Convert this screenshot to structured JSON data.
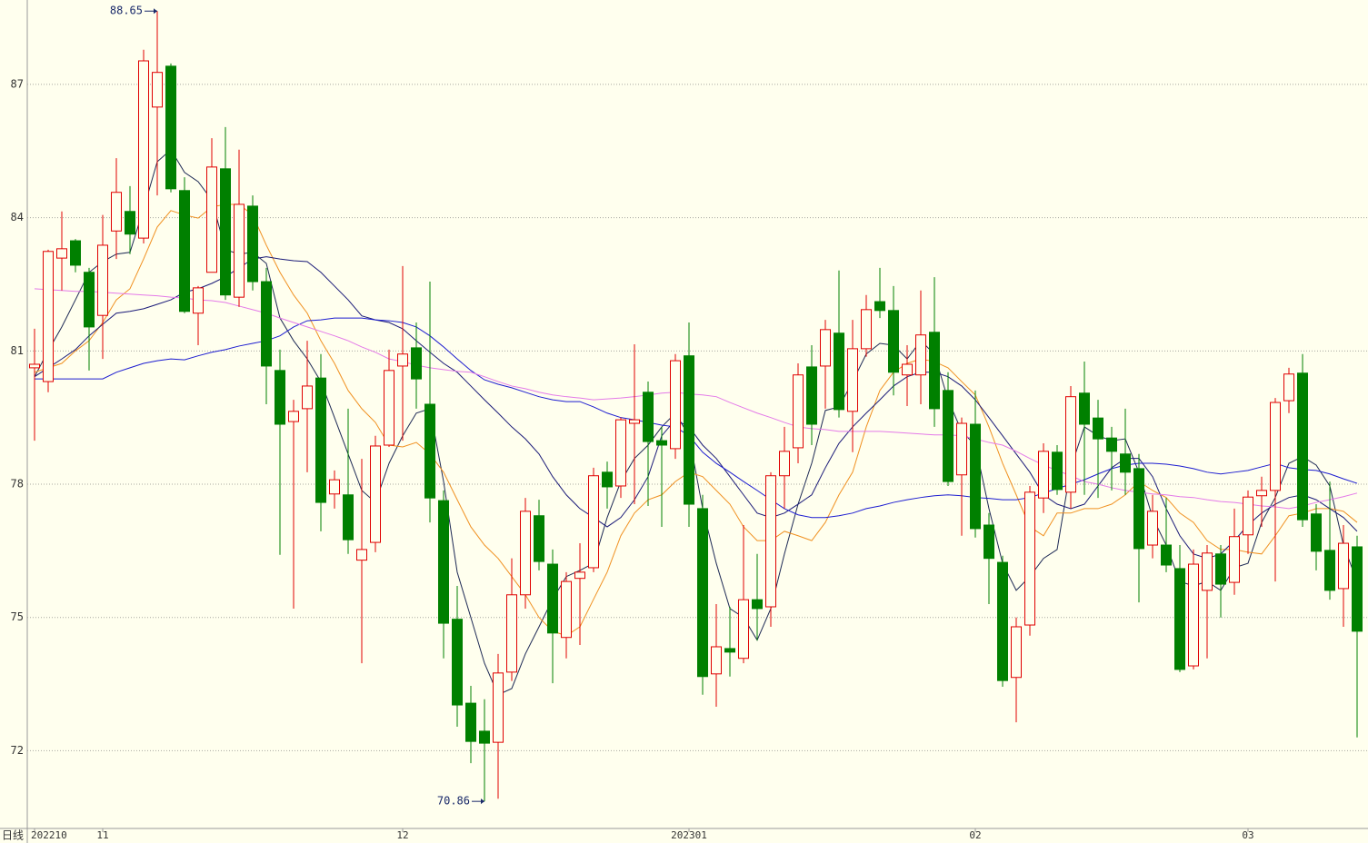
{
  "chart_data": {
    "type": "candlestick",
    "period_label": "日线",
    "categories": [
      "202210",
      null,
      null,
      null,
      null,
      "11",
      null,
      null,
      null,
      null,
      null,
      null,
      null,
      null,
      null,
      null,
      null,
      null,
      null,
      null,
      null,
      null,
      null,
      null,
      null,
      null,
      null,
      "12",
      null,
      null,
      null,
      null,
      null,
      null,
      null,
      null,
      null,
      null,
      null,
      null,
      null,
      null,
      null,
      null,
      null,
      null,
      null,
      null,
      "202301",
      null,
      null,
      null,
      null,
      null,
      null,
      null,
      null,
      null,
      null,
      null,
      null,
      null,
      null,
      null,
      null,
      null,
      null,
      null,
      null,
      "02",
      null,
      null,
      null,
      null,
      null,
      null,
      null,
      null,
      null,
      null,
      null,
      null,
      null,
      null,
      null,
      null,
      null,
      null,
      null,
      "03",
      null,
      null,
      null,
      null,
      null,
      null,
      null,
      null
    ],
    "open": [
      80.62,
      80.31,
      83.09,
      83.48,
      82.77,
      81.8,
      83.7,
      84.14,
      83.54,
      86.49,
      87.41,
      84.61,
      81.85,
      82.77,
      85.1,
      82.21,
      84.26,
      82.56,
      80.56,
      79.41,
      79.7,
      80.39,
      77.78,
      77.76,
      76.29,
      76.69,
      78.88,
      80.66,
      81.07,
      79.8,
      77.63,
      74.96,
      73.07,
      72.44,
      72.19,
      73.77,
      75.51,
      77.29,
      76.2,
      74.55,
      75.88,
      76.12,
      78.27,
      77.96,
      79.37,
      80.07,
      78.98,
      78.8,
      80.89,
      77.45,
      73.73,
      74.3,
      74.08,
      75.4,
      75.24,
      78.19,
      78.82,
      80.64,
      80.66,
      81.4,
      79.64,
      81.05,
      82.11,
      81.91,
      80.46,
      80.46,
      81.42,
      80.11,
      78.21,
      79.35,
      77.08,
      76.24,
      73.65,
      74.83,
      77.69,
      78.72,
      77.82,
      80.05,
      79.49,
      79.04,
      78.68,
      78.35,
      76.63,
      76.63,
      76.1,
      73.91,
      75.61,
      76.43,
      75.79,
      76.86,
      77.74,
      77.86,
      79.88,
      80.5,
      77.33,
      76.51,
      75.65,
      76.59
    ],
    "high": [
      81.5,
      83.28,
      84.14,
      83.52,
      82.87,
      84.06,
      85.34,
      84.71,
      87.78,
      88.65,
      87.47,
      84.91,
      82.46,
      85.79,
      86.04,
      85.53,
      84.5,
      82.87,
      81.03,
      79.9,
      81.23,
      80.93,
      78.31,
      79.7,
      78.57,
      79.09,
      81.03,
      82.91,
      81.64,
      82.56,
      77.86,
      75.71,
      73.46,
      73.16,
      74.18,
      76.33,
      77.69,
      77.65,
      76.53,
      76.02,
      76.67,
      78.37,
      78.51,
      79.5,
      81.15,
      80.31,
      79.29,
      80.93,
      81.64,
      77.76,
      75.3,
      75.24,
      77.08,
      76.43,
      78.27,
      79.29,
      80.72,
      81.13,
      81.7,
      82.81,
      81.7,
      82.26,
      82.87,
      82.46,
      81.13,
      82.36,
      82.66,
      80.52,
      79.5,
      80.11,
      77.35,
      76.39,
      75.0,
      77.96,
      78.92,
      78.88,
      80.21,
      80.76,
      79.9,
      79.29,
      79.7,
      78.68,
      77.76,
      77.69,
      76.63,
      76.53,
      76.63,
      76.63,
      77.45,
      77.86,
      78.17,
      79.94,
      80.62,
      80.93,
      77.55,
      78.06,
      77.08,
      76.84
    ],
    "low": [
      78.98,
      80.07,
      82.36,
      82.77,
      80.56,
      80.82,
      83.07,
      83.18,
      83.42,
      84.5,
      84.57,
      81.85,
      81.13,
      82.77,
      82.15,
      81.99,
      82.36,
      79.8,
      76.41,
      75.2,
      78.27,
      76.94,
      77.45,
      76.43,
      73.97,
      76.47,
      78.84,
      78.98,
      79.7,
      77.14,
      74.08,
      72.54,
      71.72,
      70.86,
      70.92,
      73.57,
      75.2,
      76.06,
      73.52,
      74.08,
      74.38,
      76.02,
      77.45,
      77.69,
      77.55,
      77.51,
      77.04,
      78.57,
      77.04,
      73.26,
      72.99,
      73.67,
      73.97,
      74.48,
      74.79,
      77.45,
      78.47,
      78.88,
      79.7,
      79.5,
      78.72,
      80.87,
      81.74,
      80.0,
      79.76,
      79.8,
      79.29,
      77.96,
      76.84,
      76.8,
      75.3,
      73.44,
      72.64,
      74.59,
      77.35,
      77.76,
      77.45,
      77.76,
      77.69,
      77.86,
      77.76,
      75.34,
      76.33,
      76.02,
      73.77,
      73.83,
      74.08,
      75.0,
      75.51,
      76.43,
      77.04,
      75.81,
      79.6,
      77.04,
      76.06,
      75.4,
      74.79,
      72.3
    ],
    "close": [
      80.7,
      83.24,
      83.3,
      82.93,
      81.54,
      83.38,
      84.57,
      83.63,
      87.53,
      87.27,
      84.65,
      81.89,
      82.42,
      85.14,
      82.26,
      84.3,
      82.56,
      80.66,
      79.35,
      79.64,
      80.21,
      77.59,
      78.1,
      76.75,
      76.53,
      78.86,
      80.56,
      80.93,
      80.37,
      77.69,
      74.87,
      73.03,
      72.21,
      72.17,
      73.75,
      75.51,
      77.39,
      76.26,
      74.65,
      75.81,
      76.02,
      78.19,
      77.94,
      79.45,
      79.45,
      78.96,
      78.88,
      80.78,
      77.55,
      73.67,
      74.34,
      74.22,
      75.4,
      75.2,
      78.19,
      78.74,
      80.46,
      79.35,
      81.48,
      79.68,
      81.05,
      81.93,
      81.91,
      80.52,
      80.7,
      81.36,
      79.7,
      78.06,
      79.37,
      77.0,
      76.33,
      73.58,
      74.79,
      77.82,
      78.74,
      77.88,
      79.97,
      79.35,
      79.02,
      78.74,
      78.27,
      76.55,
      77.39,
      76.18,
      73.83,
      76.2,
      76.45,
      75.75,
      76.82,
      77.71,
      77.86,
      79.84,
      80.48,
      77.2,
      76.49,
      75.61,
      76.67,
      74.69
    ],
    "up_color": "#e00000",
    "down_color": "#008000",
    "lines": [
      {
        "color": "#1e2a55",
        "values": [
          80.42,
          81.0,
          81.54,
          82.15,
          82.77,
          83.01,
          83.18,
          83.22,
          84.2,
          85.26,
          85.53,
          85.02,
          84.81,
          84.4,
          83.28,
          83.18,
          83.22,
          82.97,
          81.74,
          81.23,
          80.82,
          80.31,
          79.5,
          78.68,
          77.86,
          77.59,
          78.47,
          79.09,
          79.6,
          79.7,
          78.06,
          76.02,
          75.0,
          73.97,
          73.26,
          73.4,
          74.18,
          74.79,
          75.41,
          75.92,
          76.06,
          76.22,
          77.25,
          78.06,
          78.58,
          78.88,
          79.29,
          79.6,
          79.09,
          77.45,
          76.22,
          75.2,
          75.0,
          74.49,
          75.2,
          76.43,
          77.55,
          78.47,
          79.66,
          79.74,
          80.31,
          80.93,
          81.17,
          81.13,
          80.82,
          81.23,
          80.93,
          79.9,
          79.19,
          78.88,
          77.45,
          76.22,
          75.61,
          75.92,
          76.33,
          76.53,
          78.37,
          79.29,
          79.09,
          78.98,
          79.02,
          78.27,
          77.25,
          76.63,
          75.81,
          75.71,
          75.81,
          75.61,
          76.12,
          76.22,
          77.14,
          77.7,
          78.47,
          78.62,
          78.43,
          77.96,
          76.63,
          75.81
        ]
      },
      {
        "color": "#f09020",
        "values": [
          80.52,
          80.62,
          80.72,
          81.0,
          81.23,
          81.64,
          82.15,
          82.4,
          83.07,
          83.79,
          84.16,
          84.06,
          83.99,
          84.24,
          84.3,
          84.3,
          84.06,
          83.38,
          82.77,
          82.26,
          81.85,
          81.23,
          80.72,
          80.11,
          79.7,
          79.39,
          78.88,
          78.84,
          78.94,
          78.68,
          78.27,
          77.65,
          77.04,
          76.63,
          76.33,
          75.92,
          75.51,
          75.0,
          74.69,
          74.59,
          74.79,
          75.41,
          76.02,
          76.84,
          77.35,
          77.65,
          77.76,
          78.06,
          78.27,
          78.17,
          77.86,
          77.55,
          77.04,
          76.73,
          76.73,
          76.94,
          76.84,
          76.73,
          77.14,
          77.76,
          78.27,
          79.29,
          80.11,
          80.52,
          80.72,
          80.82,
          80.76,
          80.62,
          80.31,
          80.01,
          79.29,
          78.47,
          77.76,
          77.04,
          76.84,
          77.35,
          77.35,
          77.45,
          77.45,
          77.55,
          77.76,
          78.06,
          77.86,
          77.7,
          77.35,
          77.14,
          76.73,
          76.53,
          76.53,
          76.47,
          76.43,
          76.84,
          77.29,
          77.35,
          77.45,
          77.45,
          77.39,
          77.14
        ]
      },
      {
        "color": "#1a1a78",
        "values": [
          80.42,
          80.62,
          80.82,
          81.03,
          81.34,
          81.6,
          81.85,
          81.89,
          81.95,
          82.05,
          82.15,
          82.32,
          82.4,
          82.52,
          82.67,
          82.87,
          83.07,
          83.12,
          83.07,
          83.03,
          83.01,
          82.77,
          82.46,
          82.15,
          81.79,
          81.7,
          81.64,
          81.5,
          81.23,
          80.97,
          80.72,
          80.52,
          80.21,
          79.9,
          79.6,
          79.29,
          79.02,
          78.68,
          78.17,
          77.76,
          77.45,
          77.25,
          77.04,
          77.25,
          77.65,
          78.17,
          79.09,
          79.45,
          79.29,
          78.88,
          78.58,
          78.17,
          77.76,
          77.35,
          77.25,
          77.35,
          77.55,
          77.76,
          78.37,
          78.92,
          79.29,
          79.6,
          79.9,
          80.21,
          80.42,
          80.52,
          80.52,
          80.42,
          80.21,
          79.9,
          79.5,
          79.09,
          78.68,
          78.27,
          77.76,
          77.55,
          77.45,
          77.55,
          77.96,
          78.37,
          78.58,
          78.58,
          78.17,
          77.45,
          76.84,
          76.43,
          76.33,
          76.43,
          76.73,
          77.08,
          77.35,
          77.55,
          77.7,
          77.76,
          77.65,
          77.45,
          77.25,
          76.94
        ]
      },
      {
        "color": "#1c1cd0",
        "values": [
          80.37,
          80.37,
          80.37,
          80.37,
          80.37,
          80.37,
          80.52,
          80.62,
          80.72,
          80.78,
          80.82,
          80.8,
          80.89,
          80.97,
          81.03,
          81.11,
          81.17,
          81.23,
          81.34,
          81.54,
          81.68,
          81.7,
          81.74,
          81.74,
          81.74,
          81.7,
          81.68,
          81.64,
          81.54,
          81.34,
          81.09,
          80.82,
          80.56,
          80.35,
          80.25,
          80.17,
          80.07,
          79.97,
          79.9,
          79.86,
          79.86,
          79.74,
          79.6,
          79.5,
          79.45,
          79.39,
          79.33,
          79.29,
          79.09,
          78.72,
          78.47,
          78.27,
          78.06,
          77.86,
          77.65,
          77.45,
          77.31,
          77.25,
          77.25,
          77.29,
          77.35,
          77.45,
          77.51,
          77.59,
          77.65,
          77.7,
          77.74,
          77.76,
          77.74,
          77.7,
          77.68,
          77.65,
          77.65,
          77.7,
          77.8,
          77.9,
          78.0,
          78.1,
          78.23,
          78.35,
          78.43,
          78.47,
          78.47,
          78.45,
          78.41,
          78.35,
          78.27,
          78.23,
          78.27,
          78.31,
          78.39,
          78.47,
          78.37,
          78.33,
          78.31,
          78.23,
          78.12,
          78.02
        ]
      },
      {
        "color": "#e47ae8",
        "values": [
          82.4,
          82.38,
          82.36,
          82.34,
          82.34,
          82.32,
          82.3,
          82.28,
          82.26,
          82.24,
          82.21,
          82.19,
          82.15,
          82.13,
          82.09,
          82.01,
          81.93,
          81.85,
          81.74,
          81.64,
          81.54,
          81.44,
          81.34,
          81.23,
          81.09,
          80.97,
          80.82,
          80.76,
          80.68,
          80.62,
          80.58,
          80.54,
          80.52,
          80.42,
          80.31,
          80.21,
          80.15,
          80.07,
          80.01,
          79.97,
          79.94,
          79.9,
          79.92,
          79.94,
          79.97,
          80.01,
          80.05,
          80.07,
          80.03,
          80.01,
          79.97,
          79.84,
          79.72,
          79.6,
          79.5,
          79.39,
          79.29,
          79.25,
          79.23,
          79.19,
          79.19,
          79.19,
          79.19,
          79.17,
          79.15,
          79.13,
          79.11,
          79.11,
          79.09,
          79.02,
          78.94,
          78.88,
          78.74,
          78.58,
          78.43,
          78.31,
          78.19,
          78.06,
          78.0,
          77.92,
          77.86,
          77.82,
          77.78,
          77.76,
          77.72,
          77.7,
          77.65,
          77.61,
          77.59,
          77.55,
          77.51,
          77.49,
          77.45,
          77.51,
          77.59,
          77.65,
          77.72,
          77.8
        ]
      }
    ],
    "annotations": [
      {
        "label": "88.65",
        "value": 88.65
      },
      {
        "label": "70.86",
        "value": 70.86
      }
    ],
    "annotation_color": "#1a2a6a",
    "ylim": [
      70.25,
      88.9
    ],
    "yticks": [
      72,
      75,
      78,
      81,
      84,
      87
    ],
    "grid": true
  }
}
